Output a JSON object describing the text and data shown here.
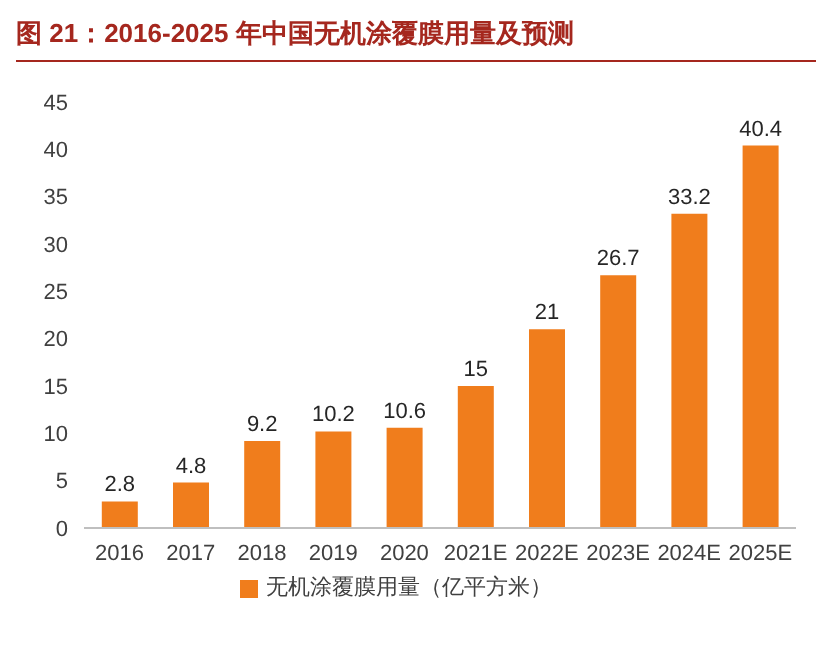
{
  "chart_data": {
    "type": "bar",
    "title": "图 21：2016-2025 年中国无机涂覆膜用量及预测",
    "categories": [
      "2016",
      "2017",
      "2018",
      "2019",
      "2020",
      "2021E",
      "2022E",
      "2023E",
      "2024E",
      "2025E"
    ],
    "series": [
      {
        "name": "无机涂覆膜用量（亿平方米）",
        "color": "#f07d1c",
        "values": [
          2.8,
          4.8,
          9.2,
          10.2,
          10.6,
          15,
          21,
          26.7,
          33.2,
          40.4
        ]
      }
    ],
    "ylim": [
      0,
      45
    ],
    "yticks": [
      0,
      5,
      10,
      15,
      20,
      25,
      30,
      35,
      40,
      45
    ],
    "data_labels": true,
    "legend": "bottom",
    "grid": false
  }
}
